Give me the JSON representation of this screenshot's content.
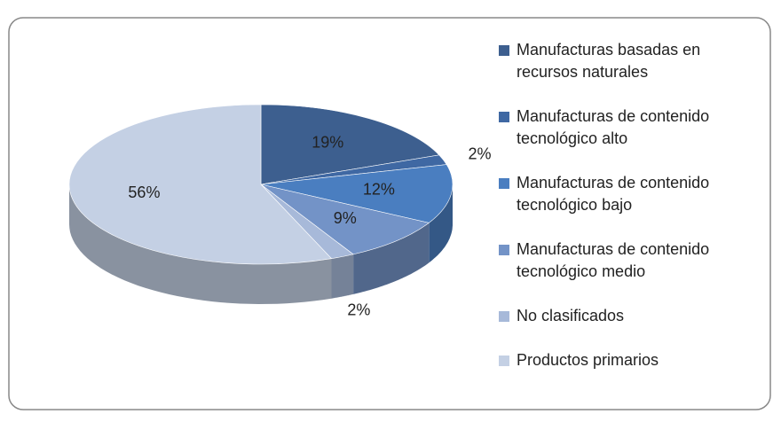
{
  "chart_data": {
    "type": "pie3d",
    "series": [
      {
        "name": "Manufacturas basadas en recursos naturales",
        "color": "#3d5f8f",
        "values": [
          19
        ],
        "value_labels": [
          "19%"
        ]
      },
      {
        "name": "Manufacturas de contenido tecnológico alto",
        "color": "#3f68a3",
        "values": [
          2
        ],
        "value_labels": [
          "2%"
        ]
      },
      {
        "name": "Manufacturas de contenido tecnológico bajo",
        "color": "#4a7ec0",
        "values": [
          12
        ],
        "value_labels": [
          "12%"
        ]
      },
      {
        "name": "Manufacturas de contenido tecnológico medio",
        "color": "#7393c7",
        "values": [
          9
        ],
        "value_labels": [
          "9%"
        ]
      },
      {
        "name": "No clasificados",
        "color": "#a7b9d9",
        "values": [
          2
        ],
        "value_labels": [
          "2%"
        ]
      },
      {
        "name": "Productos primarios",
        "color": "#c4d0e4",
        "values": [
          56
        ],
        "value_labels": [
          "56%"
        ]
      }
    ],
    "legend": "right"
  }
}
